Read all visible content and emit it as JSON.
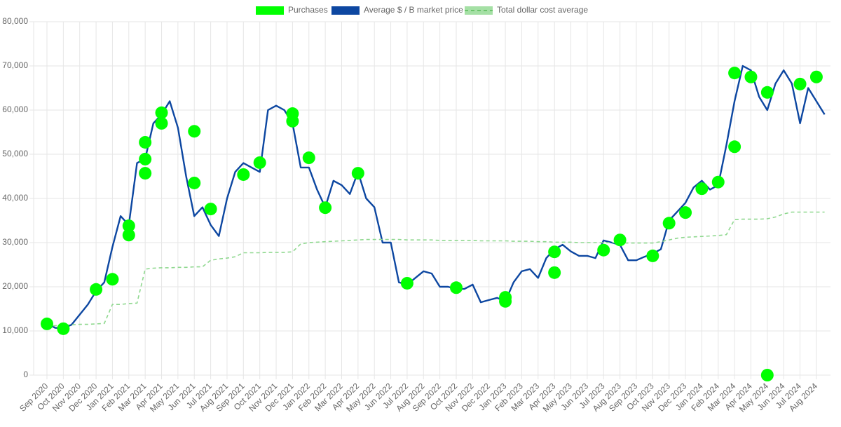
{
  "chart_data": {
    "type": "line",
    "legend": "top",
    "grid": true,
    "ylim": [
      0,
      80000
    ],
    "yticks": [
      0,
      {
        "value": 10000,
        "label": "10,000"
      },
      {
        "value": 20000,
        "label": "20,000"
      },
      {
        "value": 30000,
        "label": "30,000"
      },
      {
        "value": 40000,
        "label": "40,000"
      },
      {
        "value": 50000,
        "label": "50,000"
      },
      {
        "value": 60000,
        "label": "60,000"
      },
      {
        "value": 70000,
        "label": "70,000"
      },
      {
        "value": 80000,
        "label": "80,000"
      }
    ],
    "categories": [
      "Sep 2020",
      null,
      "Oct 2020",
      null,
      "Nov 2020",
      null,
      "Dec 2020",
      null,
      "Jan 2021",
      null,
      "Feb 2021",
      null,
      "Mar 2021",
      null,
      "Apr 2021",
      null,
      "May 2021",
      null,
      "Jun 2021",
      null,
      "Jul 2021",
      null,
      "Aug 2021",
      null,
      "Sep 2021",
      null,
      "Oct 2021",
      null,
      "Nov 2021",
      null,
      "Dec 2021",
      null,
      "Jan 2022",
      null,
      "Feb 2022",
      null,
      "Mar 2022",
      null,
      "Apr 2022",
      null,
      "May 2022",
      null,
      "Jun 2022",
      null,
      "Jul 2022",
      null,
      "Aug 2022",
      null,
      "Sep 2022",
      null,
      "Oct 2022",
      null,
      "Nov 2022",
      null,
      "Dec 2022",
      null,
      "Jan 2023",
      null,
      "Feb 2023",
      null,
      "Mar 2023",
      null,
      "Apr 2023",
      null,
      "May 2023",
      null,
      "Jun 2023",
      null,
      "Jul 2023",
      null,
      "Aug 2023",
      null,
      "Sep 2023",
      null,
      "Oct 2023",
      null,
      "Nov 2023",
      null,
      "Dec 2023",
      null,
      "Jan 2024",
      null,
      "Feb 2024",
      null,
      "Mar 2024",
      null,
      "Apr 2024",
      null,
      "May 2024",
      null,
      "Jun 2024",
      null,
      "Jul 2024",
      null,
      "Aug 2024",
      null
    ],
    "series": [
      {
        "name": "Purchases",
        "color": "#00ff00",
        "style": "points",
        "points": [
          {
            "x": "Sep 2020",
            "y": 11600
          },
          {
            "x": "Oct 2020",
            "y": 10500
          },
          {
            "x": "Dec 2020",
            "y": 19400
          },
          {
            "x": "Jan 2021",
            "y": 21700
          },
          {
            "x": "Feb 2021",
            "y": 31700
          },
          {
            "x": "Feb 2021",
            "y": 33800
          },
          {
            "x": "Mar 2021",
            "y": 52700
          },
          {
            "x": "Mar 2021",
            "y": 45700
          },
          {
            "x": "Mar 2021",
            "y": 48900
          },
          {
            "x": "Apr 2021",
            "y": 57000
          },
          {
            "x": "Apr 2021",
            "y": 59400
          },
          {
            "x": "Jun 2021",
            "y": 55200
          },
          {
            "x": "Jun 2021",
            "y": 43500
          },
          {
            "x": "Jul 2021",
            "y": 37600
          },
          {
            "x": "Sep 2021",
            "y": 45400
          },
          {
            "x": "Oct 2021",
            "y": 48100
          },
          {
            "x": "Dec 2021",
            "y": 59200
          },
          {
            "x": "Dec 2021",
            "y": 57500
          },
          {
            "x": "Jan 2022",
            "y": 49200
          },
          {
            "x": "Feb 2022",
            "y": 37900
          },
          {
            "x": "Apr 2022",
            "y": 45700
          },
          {
            "x": "Jul 2022",
            "y": 20800
          },
          {
            "x": "Oct 2022",
            "y": 19800
          },
          {
            "x": "Jan 2023",
            "y": 17600
          },
          {
            "x": "Jan 2023",
            "y": 16700
          },
          {
            "x": "Apr 2023",
            "y": 23200
          },
          {
            "x": "Apr 2023",
            "y": 27900
          },
          {
            "x": "Jul 2023",
            "y": 28300
          },
          {
            "x": "Aug 2023",
            "y": 30600
          },
          {
            "x": "Oct 2023",
            "y": 27000
          },
          {
            "x": "Nov 2023",
            "y": 34400
          },
          {
            "x": "Dec 2023",
            "y": 36800
          },
          {
            "x": "Jan 2024",
            "y": 42200
          },
          {
            "x": "Feb 2024",
            "y": 43700
          },
          {
            "x": "Mar 2024",
            "y": 51700
          },
          {
            "x": "Mar 2024",
            "y": 68400
          },
          {
            "x": "Apr 2024",
            "y": 67500
          },
          {
            "x": "May 2024",
            "y": 64000
          },
          {
            "x": "May 2024",
            "y": 0
          },
          {
            "x": "Jul 2024",
            "y": 65900
          },
          {
            "x": "Aug 2024",
            "y": 67500
          }
        ]
      },
      {
        "name": "Average $ / B market price",
        "color": "#0d47a1",
        "style": "solid",
        "values": [
          11700,
          10700,
          10600,
          11400,
          13700,
          16000,
          19000,
          21000,
          29000,
          36000,
          34000,
          48000,
          49000,
          57000,
          59000,
          62000,
          56000,
          45000,
          36000,
          38000,
          34000,
          31500,
          40000,
          46000,
          48000,
          47000,
          46000,
          60000,
          61000,
          60000,
          57000,
          47000,
          47000,
          42000,
          38000,
          44000,
          43000,
          41000,
          46000,
          40000,
          38000,
          30000,
          30000,
          21000,
          20500,
          22000,
          23500,
          23000,
          20000,
          20000,
          19500,
          19500,
          20500,
          16500,
          17000,
          17500,
          16700,
          21000,
          23500,
          24000,
          22000,
          26500,
          28500,
          29500,
          28000,
          27000,
          27000,
          26500,
          30500,
          30000,
          29500,
          26000,
          26000,
          26800,
          27500,
          28500,
          35000,
          37000,
          39000,
          42500,
          44000,
          42000,
          43000,
          52000,
          62000,
          70000,
          69000,
          63000,
          60000,
          66000,
          69000,
          66000,
          57000,
          65000,
          62000,
          59000
        ]
      },
      {
        "name": "Total dollar cost average",
        "color": "#8fd88f",
        "style": "dashed",
        "values": [
          11000,
          11200,
          11300,
          11400,
          11500,
          11500,
          11600,
          11700,
          16000,
          16000,
          16200,
          16300,
          24000,
          24200,
          24300,
          24300,
          24400,
          24400,
          24500,
          24500,
          26000,
          26300,
          26500,
          26800,
          27700,
          27700,
          27700,
          27800,
          27800,
          27800,
          27900,
          29700,
          30000,
          30100,
          30200,
          30300,
          30400,
          30500,
          30600,
          30700,
          30700,
          30700,
          30700,
          30700,
          30600,
          30600,
          30600,
          30600,
          30500,
          30500,
          30500,
          30500,
          30500,
          30400,
          30400,
          30400,
          30400,
          30300,
          30300,
          30300,
          30200,
          30200,
          30100,
          30100,
          30100,
          30000,
          30000,
          30000,
          30000,
          30000,
          29900,
          29900,
          29900,
          29900,
          29900,
          30200,
          30600,
          31000,
          31200,
          31300,
          31400,
          31500,
          31600,
          31800,
          35200,
          35300,
          35300,
          35300,
          35400,
          35800,
          36500,
          36900,
          36900,
          36900,
          36900,
          36900
        ]
      }
    ]
  }
}
